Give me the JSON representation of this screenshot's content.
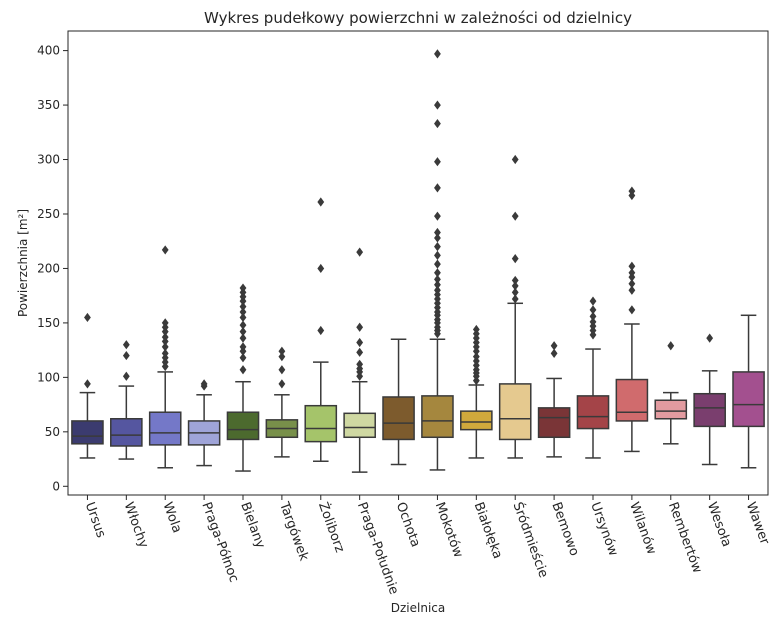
{
  "chart_data": {
    "type": "box",
    "title": "Wykres pudełkowy powierzchni w zależności od dzielnicy",
    "xlabel": "Dzielnica",
    "ylabel": "Powierzchnia [m²]",
    "ylim": [
      -8,
      418
    ],
    "yticks": [
      0,
      50,
      100,
      150,
      200,
      250,
      300,
      350,
      400
    ],
    "legend": "none",
    "grid": false,
    "categories": [
      "Ursus",
      "Włochy",
      "Wola",
      "Praga-Północ",
      "Bielany",
      "Targówek",
      "Żoliborz",
      "Praga-Południe",
      "Ochota",
      "Mokotów",
      "Białołęka",
      "Śródmieście",
      "Bemowo",
      "Ursynów",
      "Wilanów",
      "Rembertów",
      "Wesoła",
      "Wawer"
    ],
    "colors": [
      "#3b3b6f",
      "#5556a0",
      "#7478c8",
      "#9fa4d8",
      "#4c6a2e",
      "#78904a",
      "#a5c46a",
      "#cfd8a2",
      "#7d5b2d",
      "#a5873e",
      "#d0a93c",
      "#e5c98f",
      "#7a3537",
      "#a44448",
      "#d06b6d",
      "#e29ba0",
      "#7a3e6e",
      "#a3508f"
    ],
    "series": [
      {
        "category": "Ursus",
        "whislo": 26,
        "q1": 39,
        "med": 46,
        "q3": 60,
        "whishi": 86,
        "fliers": [
          94,
          155
        ]
      },
      {
        "category": "Włochy",
        "whislo": 25,
        "q1": 37,
        "med": 47,
        "q3": 62,
        "whishi": 92,
        "fliers": [
          101,
          120,
          130
        ]
      },
      {
        "category": "Wola",
        "whislo": 17,
        "q1": 38,
        "med": 49,
        "q3": 68,
        "whishi": 105,
        "fliers": [
          110,
          114,
          118,
          122,
          128,
          133,
          137,
          142,
          146,
          150,
          217
        ]
      },
      {
        "category": "Praga-Północ",
        "whislo": 19,
        "q1": 38,
        "med": 49,
        "q3": 60,
        "whishi": 84,
        "fliers": [
          92,
          94
        ]
      },
      {
        "category": "Bielany",
        "whislo": 14,
        "q1": 43,
        "med": 52,
        "q3": 68,
        "whishi": 96,
        "fliers": [
          107,
          118,
          124,
          128,
          136,
          142,
          148,
          155,
          160,
          165,
          170,
          174,
          178,
          182
        ]
      },
      {
        "category": "Targówek",
        "whislo": 27,
        "q1": 45,
        "med": 53,
        "q3": 61,
        "whishi": 84,
        "fliers": [
          94,
          107,
          119,
          124
        ]
      },
      {
        "category": "Żoliborz",
        "whislo": 23,
        "q1": 41,
        "med": 53,
        "q3": 74,
        "whishi": 114,
        "fliers": [
          143,
          200,
          261
        ]
      },
      {
        "category": "Praga-Południe",
        "whislo": 13,
        "q1": 45,
        "med": 54,
        "q3": 67,
        "whishi": 96,
        "fliers": [
          101,
          105,
          108,
          112,
          123,
          132,
          146,
          215
        ]
      },
      {
        "category": "Ochota",
        "whislo": 20,
        "q1": 43,
        "med": 58,
        "q3": 82,
        "whishi": 135,
        "fliers": []
      },
      {
        "category": "Mokotów",
        "whislo": 15,
        "q1": 45,
        "med": 60,
        "q3": 83,
        "whishi": 135,
        "fliers": [
          140,
          143,
          146,
          150,
          153,
          157,
          160,
          164,
          168,
          172,
          176,
          180,
          185,
          190,
          196,
          204,
          212,
          220,
          228,
          233,
          248,
          274,
          298,
          333,
          350,
          397
        ]
      },
      {
        "category": "Białołęka",
        "whislo": 26,
        "q1": 52,
        "med": 59,
        "q3": 69,
        "whishi": 93,
        "fliers": [
          97,
          101,
          104,
          107,
          111,
          115,
          119,
          124,
          128,
          132,
          136,
          140,
          144
        ]
      },
      {
        "category": "Śródmieście",
        "whislo": 26,
        "q1": 43,
        "med": 62,
        "q3": 94,
        "whishi": 168,
        "fliers": [
          172,
          178,
          184,
          189,
          209,
          248,
          300
        ]
      },
      {
        "category": "Bemowo",
        "whislo": 27,
        "q1": 45,
        "med": 63,
        "q3": 72,
        "whishi": 99,
        "fliers": [
          122,
          129
        ]
      },
      {
        "category": "Ursynów",
        "whislo": 26,
        "q1": 53,
        "med": 64,
        "q3": 83,
        "whishi": 126,
        "fliers": [
          139,
          143,
          147,
          151,
          156,
          162,
          170
        ]
      },
      {
        "category": "Wilanów",
        "whislo": 32,
        "q1": 60,
        "med": 68,
        "q3": 98,
        "whishi": 149,
        "fliers": [
          162,
          180,
          186,
          192,
          196,
          202,
          267,
          271
        ]
      },
      {
        "category": "Rembertów",
        "whislo": 39,
        "q1": 62,
        "med": 69,
        "q3": 79,
        "whishi": 86,
        "fliers": [
          129
        ]
      },
      {
        "category": "Wesoła",
        "whislo": 20,
        "q1": 55,
        "med": 72,
        "q3": 85,
        "whishi": 106,
        "fliers": [
          136
        ]
      },
      {
        "category": "Wawer",
        "whislo": 17,
        "q1": 55,
        "med": 75,
        "q3": 105,
        "whishi": 157,
        "fliers": []
      }
    ]
  }
}
